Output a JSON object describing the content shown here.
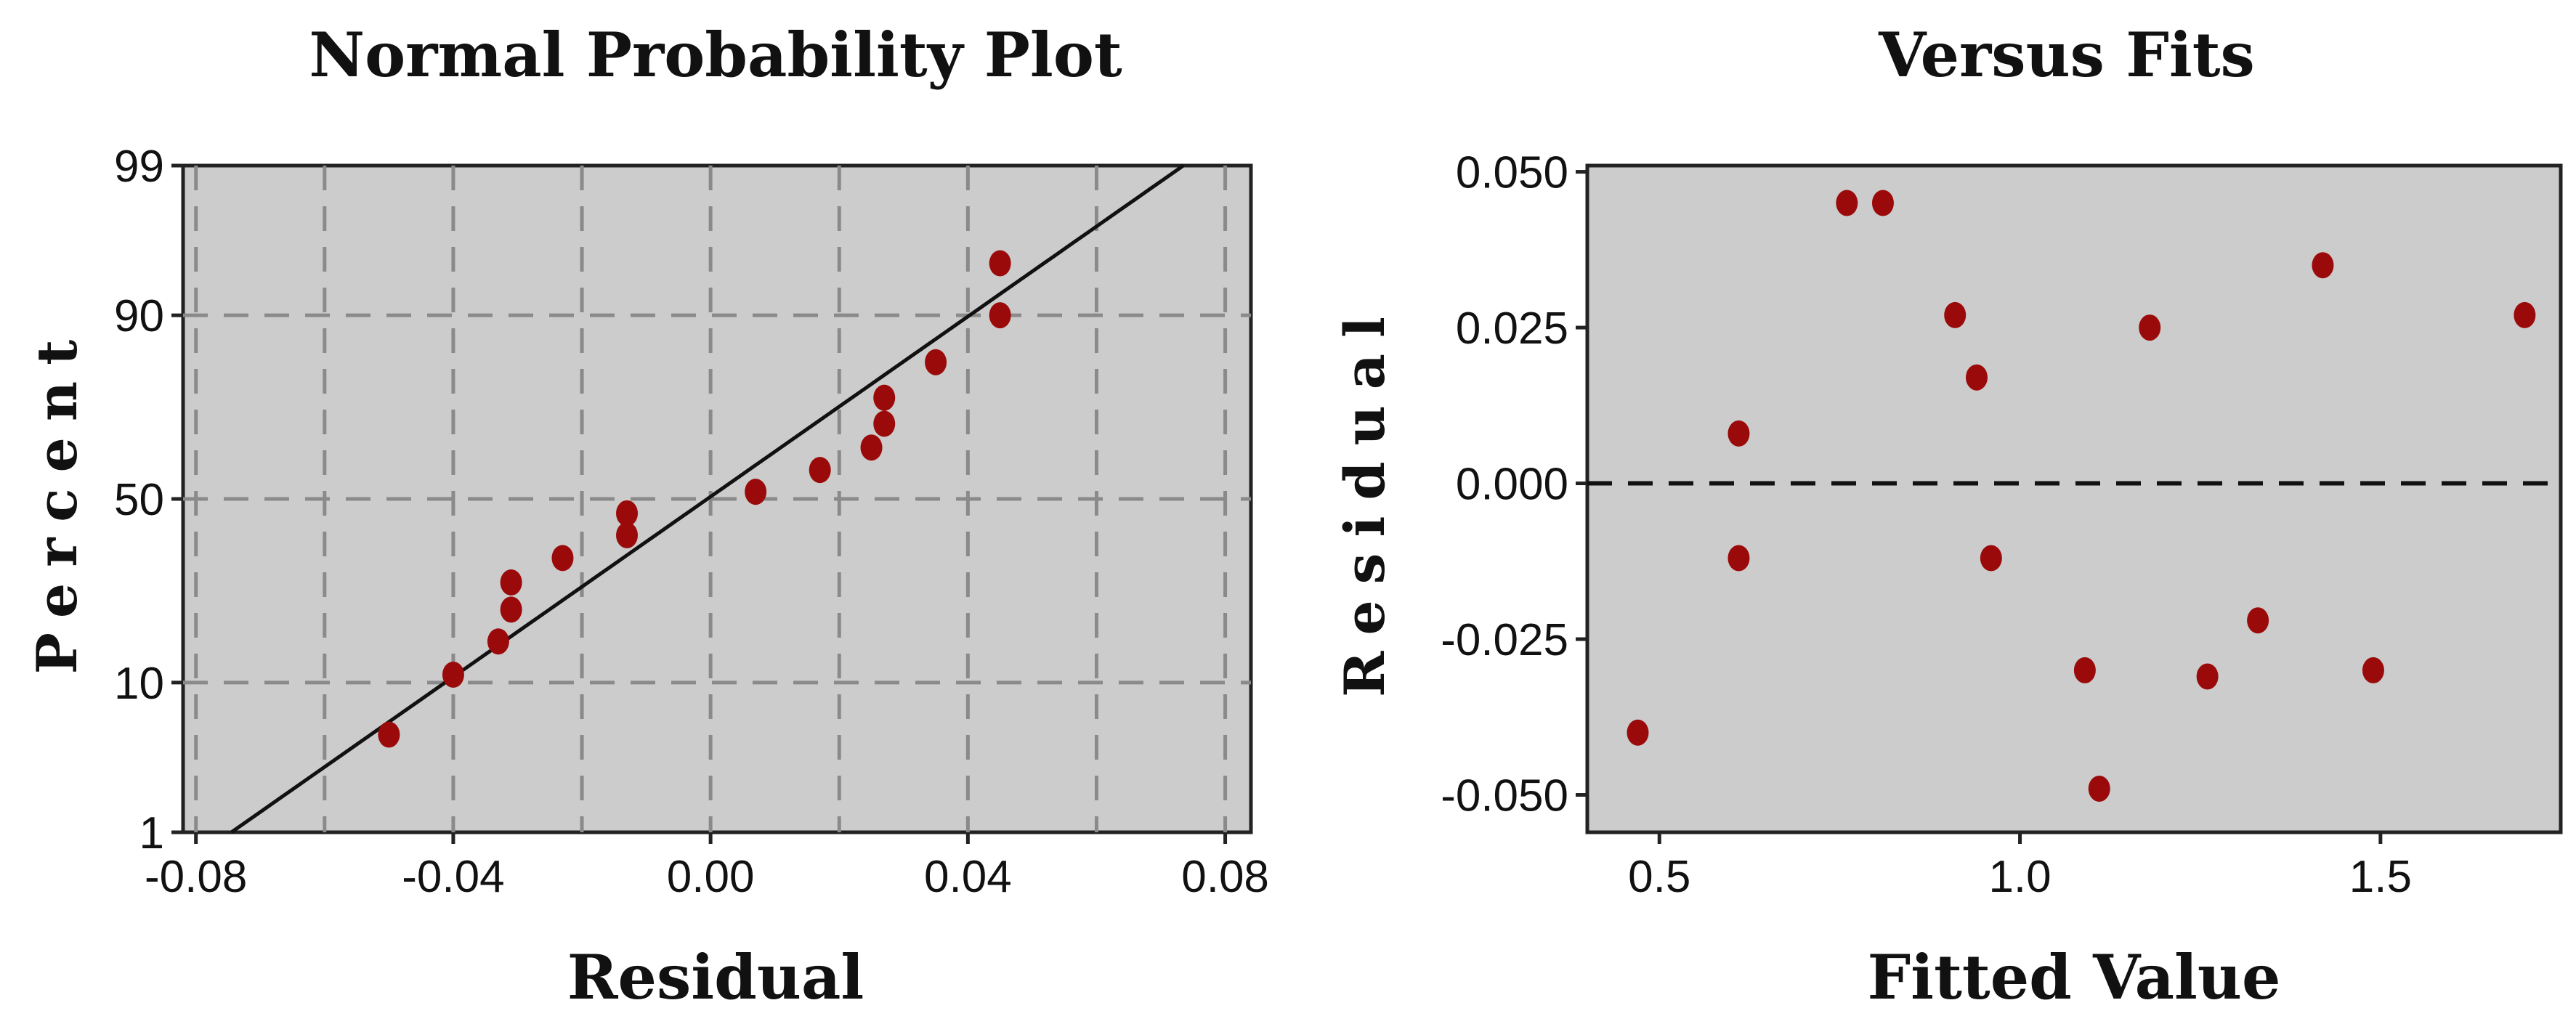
{
  "chart_data": [
    {
      "type": "scatter",
      "title": "Normal Probability Plot",
      "xlabel": "Residual",
      "ylabel": "Percent",
      "xlim": [
        -0.082,
        0.084
      ],
      "x_ticks": [
        -0.08,
        -0.04,
        0.0,
        0.04,
        0.08
      ],
      "x_tick_labels": [
        "-0.08",
        "-0.04",
        "0.00",
        "0.04",
        "0.08"
      ],
      "x_grid": [
        -0.08,
        -0.06,
        -0.04,
        -0.02,
        0.0,
        0.02,
        0.04,
        0.06,
        0.08
      ],
      "y_scale": "normal-probability",
      "ylim": [
        1,
        99
      ],
      "y_ticks": [
        1,
        10,
        50,
        90,
        99
      ],
      "y_tick_labels": [
        "1",
        "10",
        "50",
        "90",
        "99"
      ],
      "y_grid": [
        10,
        50,
        90
      ],
      "grid": true,
      "fit_line": {
        "x": [
          -0.0745,
          0.0735
        ],
        "y": [
          1,
          99
        ]
      },
      "points": [
        {
          "x": -0.05,
          "y": 5
        },
        {
          "x": -0.04,
          "y": 11
        },
        {
          "x": -0.033,
          "y": 16
        },
        {
          "x": -0.031,
          "y": 22
        },
        {
          "x": -0.031,
          "y": 28
        },
        {
          "x": -0.023,
          "y": 34
        },
        {
          "x": -0.013,
          "y": 40
        },
        {
          "x": -0.013,
          "y": 46
        },
        {
          "x": 0.007,
          "y": 52
        },
        {
          "x": 0.017,
          "y": 58
        },
        {
          "x": 0.025,
          "y": 64
        },
        {
          "x": 0.027,
          "y": 70
        },
        {
          "x": 0.027,
          "y": 76
        },
        {
          "x": 0.035,
          "y": 83
        },
        {
          "x": 0.045,
          "y": 90
        },
        {
          "x": 0.045,
          "y": 95
        }
      ],
      "point_color": "#9b0a0a"
    },
    {
      "type": "scatter",
      "title": "Versus Fits",
      "xlabel": "Fitted Value",
      "ylabel": "Residual",
      "xlim": [
        0.4,
        1.75
      ],
      "x_ticks": [
        0.5,
        1.0,
        1.5
      ],
      "x_tick_labels": [
        "0.5",
        "1.0",
        "1.5"
      ],
      "ylim": [
        -0.056,
        0.051
      ],
      "y_ticks": [
        -0.05,
        -0.025,
        0.0,
        0.025,
        0.05
      ],
      "y_tick_labels": [
        "-0.050",
        "-0.025",
        "0.000",
        "0.025",
        "0.050"
      ],
      "reference_line": 0,
      "grid": false,
      "points": [
        {
          "x": 0.47,
          "y": -0.04
        },
        {
          "x": 0.61,
          "y": 0.008
        },
        {
          "x": 0.61,
          "y": -0.012
        },
        {
          "x": 0.76,
          "y": 0.045
        },
        {
          "x": 0.81,
          "y": 0.045
        },
        {
          "x": 0.91,
          "y": 0.027
        },
        {
          "x": 0.94,
          "y": 0.017
        },
        {
          "x": 0.96,
          "y": -0.012
        },
        {
          "x": 1.09,
          "y": -0.03
        },
        {
          "x": 1.11,
          "y": -0.049
        },
        {
          "x": 1.18,
          "y": 0.025
        },
        {
          "x": 1.26,
          "y": -0.031
        },
        {
          "x": 1.33,
          "y": -0.022
        },
        {
          "x": 1.42,
          "y": 0.035
        },
        {
          "x": 1.49,
          "y": -0.03
        },
        {
          "x": 1.7,
          "y": 0.027
        }
      ],
      "point_color": "#9b0a0a"
    }
  ]
}
